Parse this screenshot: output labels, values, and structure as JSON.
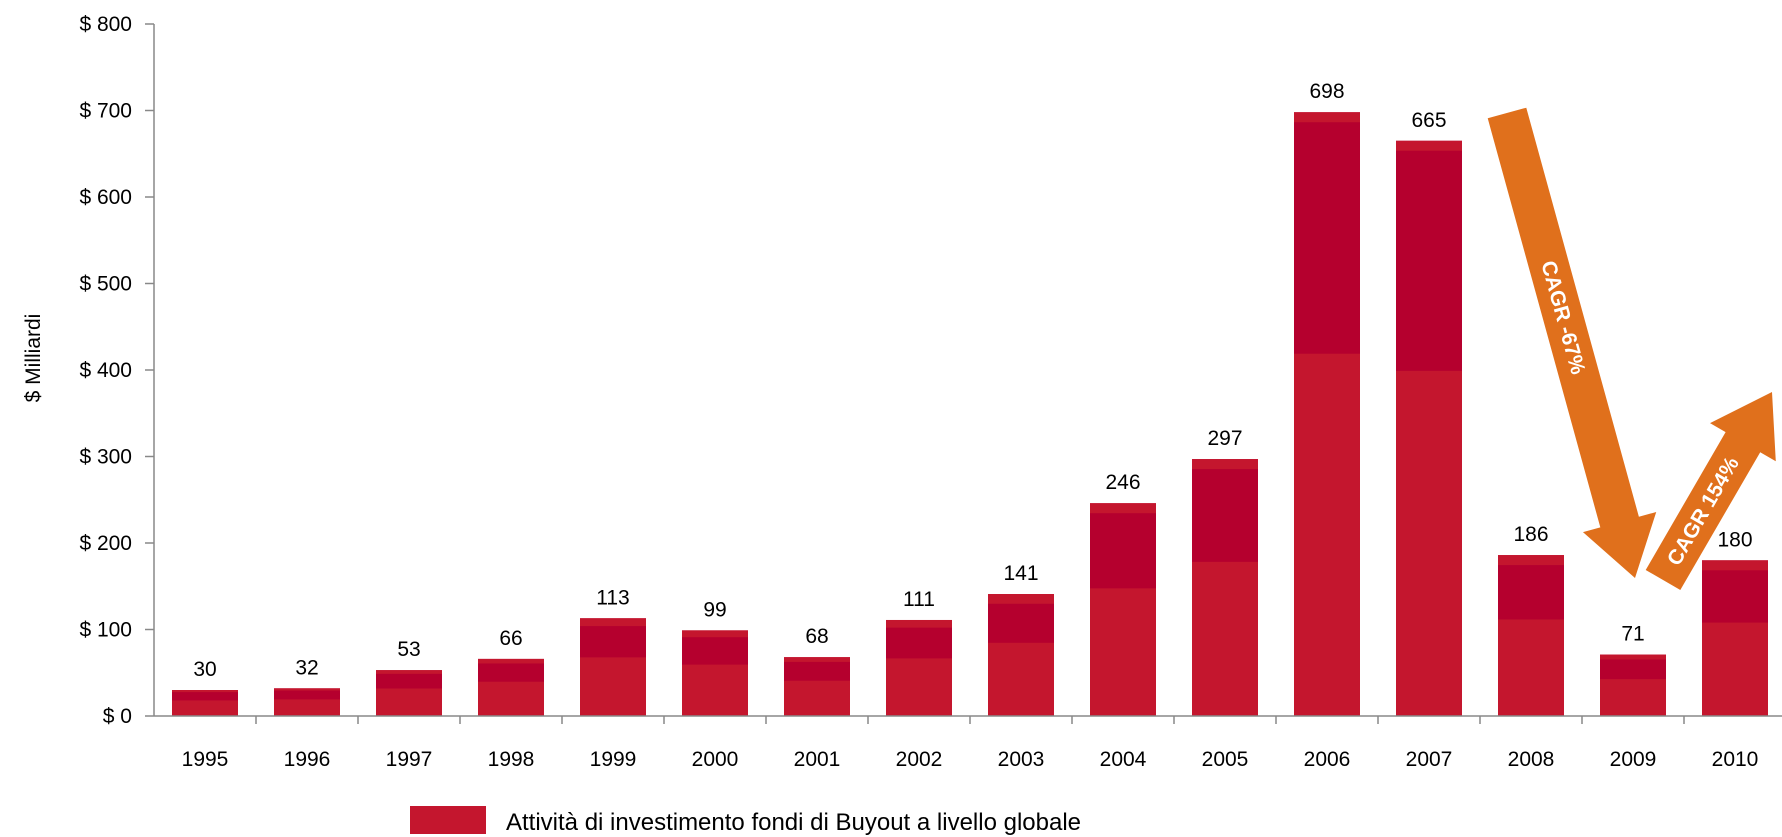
{
  "chart_data": {
    "type": "bar",
    "categories": [
      "1995",
      "1996",
      "1997",
      "1998",
      "1999",
      "2000",
      "2001",
      "2002",
      "2003",
      "2004",
      "2005",
      "2006",
      "2007",
      "2008",
      "2009",
      "2010"
    ],
    "series": [
      {
        "name": "Attività di investimento fondi di Buyout a livello globale",
        "values": [
          30,
          32,
          53,
          66,
          113,
          99,
          68,
          111,
          141,
          246,
          297,
          698,
          665,
          186,
          71,
          180
        ]
      }
    ],
    "data_labels": [
      "30",
      "32",
      "53",
      "66",
      "113",
      "99",
      "68",
      "111",
      "141",
      "246",
      "297",
      "698",
      "665",
      "186",
      "71",
      "180"
    ],
    "ylabel": "$ Milliardi",
    "ylim": [
      0,
      800
    ],
    "yticks": [
      0,
      100,
      200,
      300,
      400,
      500,
      600,
      700,
      800
    ],
    "ytick_labels": [
      "$ 0",
      "$ 100",
      "$ 200",
      "$ 300",
      "$ 400",
      "$ 500",
      "$ 600",
      "$ 700",
      "$ 800"
    ],
    "legend_position": "bottom",
    "annotations": [
      {
        "text": "CAGR -67%",
        "from": "2007",
        "to": "2009",
        "direction": "down"
      },
      {
        "text": "CAGR 154%",
        "from": "2009",
        "to": "2010",
        "direction": "up"
      }
    ],
    "colors": {
      "bar": "#b5002e",
      "bar_light": "#c4162e",
      "arrow": "#e0701c"
    }
  }
}
